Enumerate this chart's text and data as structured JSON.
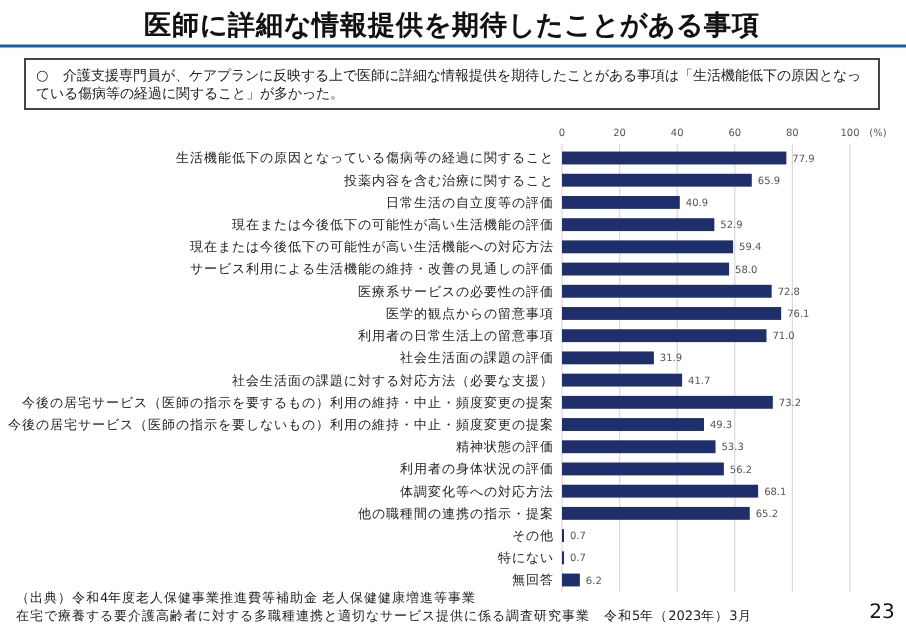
{
  "chart_data": {
    "type": "bar",
    "orientation": "horizontal",
    "title": "医師に詳細な情報提供を期待したことがある事項",
    "subtitle": "○　介護支援専門員が、ケアプランに反映する上で医師に詳細な情報提供を期待したことがある事項は「生活機能低下の原因となっている傷病等の経過に関すること」が多かった。",
    "xlabel": "(%)",
    "categories": [
      "生活機能低下の原因となっている傷病等の経過に関すること",
      "投薬内容を含む治療に関すること",
      "日常生活の自立度等の評価",
      "現在または今後低下の可能性が高い生活機能の評価",
      "現在または今後低下の可能性が高い生活機能への対応方法",
      "サービス利用による生活機能の維持・改善の見通しの評価",
      "医療系サービスの必要性の評価",
      "医学的観点からの留意事項",
      "利用者の日常生活上の留意事項",
      "社会生活面の課題の評価",
      "社会生活面の課題に対する対応方法（必要な支援）",
      "今後の居宅サービス（医師の指示を要するもの）利用の維持・中止・頻度変更の提案",
      "今後の居宅サービス（医師の指示を要しないもの）利用の維持・中止・頻度変更の提案",
      "精神状態の評価",
      "利用者の身体状況の評価",
      "体調変化等への対応方法",
      "他の職種間の連携の指示・提案",
      "その他",
      "特にない",
      "無回答"
    ],
    "values": [
      77.9,
      65.9,
      40.9,
      52.9,
      59.4,
      58.0,
      72.8,
      76.1,
      71.0,
      31.9,
      41.7,
      73.2,
      49.3,
      53.3,
      56.2,
      68.1,
      65.2,
      0.7,
      0.7,
      6.2
    ],
    "value_labels": [
      "77.9",
      "65.9",
      "40.9",
      "52.9",
      "59.4",
      "58.0",
      "72.8",
      "76.1",
      "71.0",
      "31.9",
      "41.7",
      "73.2",
      "49.3",
      "53.3",
      "56.2",
      "68.1",
      "65.2",
      "0.7",
      "0.7",
      "6.2"
    ],
    "color": "#1f2f6b",
    "xlim": [
      0,
      100
    ],
    "xticks": [
      0,
      20,
      40,
      60,
      80,
      100
    ],
    "grid": "x",
    "annotations": [
      "（出典）令和4年度老人保健事業推進費等補助金 老人保健健康増進等事業",
      "在宅で療養する要介護高齢者に対する多職種連携と適切なサービス提供に係る調査研究事業　令和5年（2023年）3月",
      "23"
    ]
  }
}
